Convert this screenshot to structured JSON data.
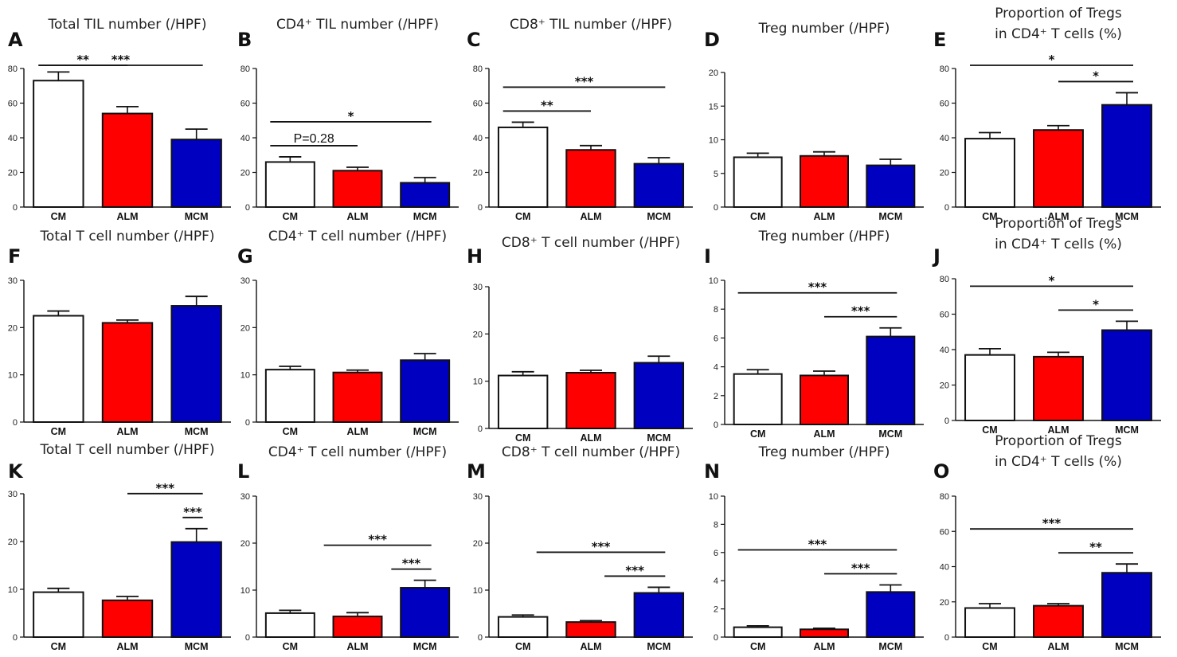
{
  "figure": {
    "colors": {
      "CM": "#ffffff",
      "ALM": "#ff0000",
      "MCM": "#0000c0",
      "stroke": "#111111"
    }
  },
  "chart_data": [
    {
      "id": "A",
      "type": "bar",
      "letter": "A",
      "title": "Total TIL number (/HPF)",
      "categories": [
        "CM",
        "ALM",
        "MCM"
      ],
      "values": [
        73,
        54,
        39
      ],
      "errors": [
        5,
        4,
        6
      ],
      "ylim": [
        0,
        80
      ],
      "yticks": [
        0,
        20,
        40,
        60,
        80
      ],
      "annotations": [
        {
          "from": 0,
          "to": 1,
          "label": "**"
        },
        {
          "from": 0,
          "to": 2,
          "label": "***"
        }
      ]
    },
    {
      "id": "B",
      "type": "bar",
      "letter": "B",
      "title": "CD4⁺ TIL number (/HPF)",
      "categories": [
        "CM",
        "ALM",
        "MCM"
      ],
      "values": [
        26,
        21,
        14
      ],
      "errors": [
        3,
        2,
        3
      ],
      "ylim": [
        0,
        80
      ],
      "yticks": [
        0,
        20,
        40,
        60,
        80
      ],
      "annotations": [
        {
          "from": 0,
          "to": 1,
          "label": "P=0.28"
        },
        {
          "from": 0,
          "to": 2,
          "label": "*"
        }
      ]
    },
    {
      "id": "C",
      "type": "bar",
      "letter": "C",
      "title": "CD8⁺ TIL number (/HPF)",
      "categories": [
        "CM",
        "ALM",
        "MCM"
      ],
      "values": [
        46,
        33,
        25
      ],
      "errors": [
        3,
        2.5,
        3.5
      ],
      "ylim": [
        0,
        80
      ],
      "yticks": [
        0,
        20,
        40,
        60,
        80
      ],
      "annotations": [
        {
          "from": 0,
          "to": 1,
          "label": "**"
        },
        {
          "from": 0,
          "to": 2,
          "label": "***"
        }
      ]
    },
    {
      "id": "D",
      "type": "bar",
      "letter": "D",
      "title": "Treg number (/HPF)",
      "categories": [
        "CM",
        "ALM",
        "MCM"
      ],
      "values": [
        7.4,
        7.6,
        6.2
      ],
      "errors": [
        0.6,
        0.6,
        0.9
      ],
      "ylim": [
        0,
        20
      ],
      "yticks": [
        0,
        5,
        10,
        15,
        20
      ],
      "annotations": []
    },
    {
      "id": "E",
      "type": "bar",
      "letter": "E",
      "title": "Proportion of Tregs",
      "title2": "in CD4⁺ T cells (%)",
      "categories": [
        "CM",
        "ALM",
        "MCM"
      ],
      "values": [
        39.5,
        44.5,
        59
      ],
      "errors": [
        3.5,
        2.5,
        7
      ],
      "ylim": [
        0,
        80
      ],
      "yticks": [
        0,
        20,
        40,
        60,
        80
      ],
      "annotations": [
        {
          "from": 0,
          "to": 2,
          "label": "*"
        },
        {
          "from": 1,
          "to": 2,
          "label": "*"
        }
      ]
    },
    {
      "id": "F",
      "type": "bar",
      "letter": "F",
      "title": "Total T cell number (/HPF)",
      "categories": [
        "CM",
        "ALM",
        "MCM"
      ],
      "values": [
        22.5,
        21,
        24.6
      ],
      "errors": [
        1,
        0.6,
        2
      ],
      "ylim": [
        0,
        30
      ],
      "yticks": [
        0,
        10,
        20,
        30
      ],
      "annotations": []
    },
    {
      "id": "G",
      "type": "bar",
      "letter": "G",
      "title": "CD4⁺ T cell number (/HPF)",
      "categories": [
        "CM",
        "ALM",
        "MCM"
      ],
      "values": [
        11.1,
        10.5,
        13.1
      ],
      "errors": [
        0.7,
        0.5,
        1.4
      ],
      "ylim": [
        0,
        30
      ],
      "yticks": [
        0,
        10,
        20,
        30
      ],
      "annotations": []
    },
    {
      "id": "H",
      "type": "bar",
      "letter": "H",
      "title": "CD8⁺ T cell number (/HPF)",
      "categories": [
        "CM",
        "ALM",
        "MCM"
      ],
      "values": [
        11.2,
        11.8,
        13.9
      ],
      "errors": [
        0.8,
        0.5,
        1.4
      ],
      "ylim": [
        0,
        30
      ],
      "yticks": [
        0,
        10,
        20,
        30
      ],
      "annotations": []
    },
    {
      "id": "I",
      "type": "bar",
      "letter": "I",
      "title": "Treg number (/HPF)",
      "categories": [
        "CM",
        "ALM",
        "MCM"
      ],
      "values": [
        3.5,
        3.4,
        6.1
      ],
      "errors": [
        0.3,
        0.3,
        0.6
      ],
      "ylim": [
        0,
        10
      ],
      "yticks": [
        0,
        2,
        4,
        6,
        8,
        10
      ],
      "annotations": [
        {
          "from": 0,
          "to": 2,
          "label": "***"
        },
        {
          "from": 1,
          "to": 2,
          "label": "***"
        }
      ]
    },
    {
      "id": "J",
      "type": "bar",
      "letter": "J",
      "title": "Proportion of Tregs",
      "title2": "in CD4⁺ T cells (%)",
      "categories": [
        "CM",
        "ALM",
        "MCM"
      ],
      "values": [
        37,
        36,
        51
      ],
      "errors": [
        3.5,
        2.5,
        5
      ],
      "ylim": [
        0,
        80
      ],
      "yticks": [
        0,
        20,
        40,
        60,
        80
      ],
      "annotations": [
        {
          "from": 0,
          "to": 2,
          "label": "*"
        },
        {
          "from": 1,
          "to": 2,
          "label": "*"
        }
      ]
    },
    {
      "id": "K",
      "type": "bar",
      "letter": "K",
      "title": "Total T cell number (/HPF)",
      "categories": [
        "CM",
        "ALM",
        "MCM"
      ],
      "values": [
        9.4,
        7.7,
        19.9
      ],
      "errors": [
        0.8,
        0.8,
        2.8
      ],
      "ylim": [
        0,
        30
      ],
      "yticks": [
        0,
        10,
        20,
        30
      ],
      "annotations": [
        {
          "from": 1,
          "to": 2,
          "label": "***"
        },
        {
          "from": 1.8,
          "to": 2,
          "label": "***"
        }
      ]
    },
    {
      "id": "L",
      "type": "bar",
      "letter": "L",
      "title": "CD4⁺ T cell number (/HPF)",
      "categories": [
        "CM",
        "ALM",
        "MCM"
      ],
      "values": [
        5.1,
        4.4,
        10.5
      ],
      "errors": [
        0.6,
        0.8,
        1.6
      ],
      "ylim": [
        0,
        30
      ],
      "yticks": [
        0,
        10,
        20,
        30
      ],
      "annotations": [
        {
          "from": 0.5,
          "to": 2,
          "label": "***"
        },
        {
          "from": 1.5,
          "to": 2,
          "label": "***"
        }
      ]
    },
    {
      "id": "M",
      "type": "bar",
      "letter": "M",
      "title": "CD8⁺ T cell number (/HPF)",
      "categories": [
        "CM",
        "ALM",
        "MCM"
      ],
      "values": [
        4.3,
        3.2,
        9.4
      ],
      "errors": [
        0.4,
        0.3,
        1.2
      ],
      "ylim": [
        0,
        30
      ],
      "yticks": [
        0,
        10,
        20,
        30
      ],
      "annotations": [
        {
          "from": 0.2,
          "to": 2,
          "label": "***"
        },
        {
          "from": 1.2,
          "to": 2,
          "label": "***"
        }
      ]
    },
    {
      "id": "N",
      "type": "bar",
      "letter": "N",
      "title": "Treg number (/HPF)",
      "categories": [
        "CM",
        "ALM",
        "MCM"
      ],
      "values": [
        0.7,
        0.55,
        3.2
      ],
      "errors": [
        0.1,
        0.08,
        0.5
      ],
      "ylim": [
        0,
        10
      ],
      "yticks": [
        0,
        2,
        4,
        6,
        8,
        10
      ],
      "annotations": [
        {
          "from": 0,
          "to": 2,
          "label": "***"
        },
        {
          "from": 1,
          "to": 2,
          "label": "***"
        }
      ]
    },
    {
      "id": "O",
      "type": "bar",
      "letter": "O",
      "title": "Proportion of Tregs",
      "title2": "in CD4⁺ T cells (%)",
      "categories": [
        "CM",
        "ALM",
        "MCM"
      ],
      "values": [
        16.5,
        17.8,
        36.5
      ],
      "errors": [
        2.5,
        1.2,
        5
      ],
      "ylim": [
        0,
        80
      ],
      "yticks": [
        0,
        20,
        40,
        60,
        80
      ],
      "annotations": [
        {
          "from": 0,
          "to": 2,
          "label": "***"
        },
        {
          "from": 1,
          "to": 2,
          "label": "**"
        }
      ]
    }
  ]
}
